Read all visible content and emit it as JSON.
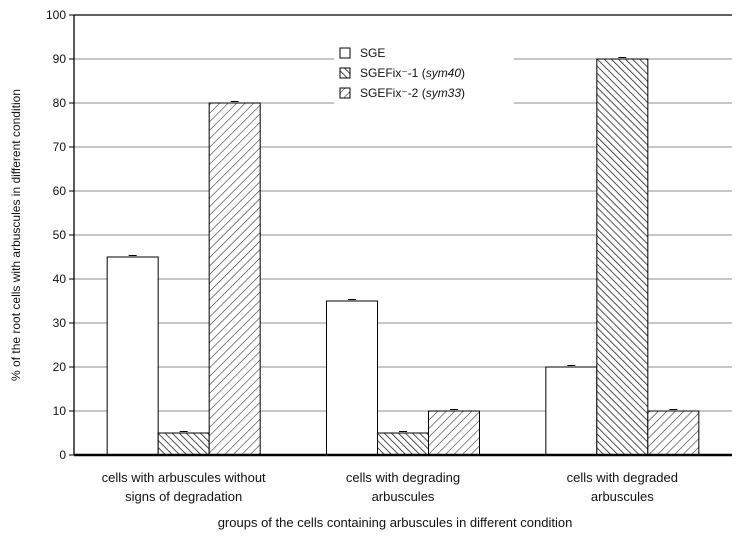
{
  "chart_data": {
    "type": "bar",
    "title": "",
    "xlabel": "groups of the cells containing arbuscules in different condition",
    "ylabel": "% of the root cells with arbuscules in different condition",
    "ylim": [
      0,
      100
    ],
    "yticks": [
      0,
      10,
      20,
      30,
      40,
      50,
      60,
      70,
      80,
      90,
      100
    ],
    "grid": "horizontal",
    "legend_position": "top-center",
    "categories": [
      [
        "cells with arbuscules without",
        "signs of degradation"
      ],
      [
        "cells with degrading",
        "arbuscules"
      ],
      [
        "cells with degraded",
        "arbuscules"
      ]
    ],
    "series": [
      {
        "name": "SGE",
        "name_parts": [
          {
            "text": "SGE",
            "italic": false
          }
        ],
        "fill": "white",
        "values": [
          45,
          35,
          20
        ]
      },
      {
        "name": "SGEFix⁻-1 (sym40)",
        "name_parts": [
          {
            "text": "SGEFix",
            "italic": false
          },
          {
            "text": "⁻",
            "italic": false
          },
          {
            "text": "-1 (",
            "italic": false
          },
          {
            "text": "sym40",
            "italic": true
          },
          {
            "text": ")",
            "italic": false
          }
        ],
        "fill": "hatch-back",
        "values": [
          5,
          5,
          90
        ]
      },
      {
        "name": "SGEFix⁻-2 (sym33)",
        "name_parts": [
          {
            "text": "SGEFix",
            "italic": false
          },
          {
            "text": "⁻",
            "italic": false
          },
          {
            "text": "-2 (",
            "italic": false
          },
          {
            "text": "sym33",
            "italic": true
          },
          {
            "text": ")",
            "italic": false
          }
        ],
        "fill": "hatch-forward",
        "values": [
          80,
          10,
          10
        ]
      }
    ]
  }
}
